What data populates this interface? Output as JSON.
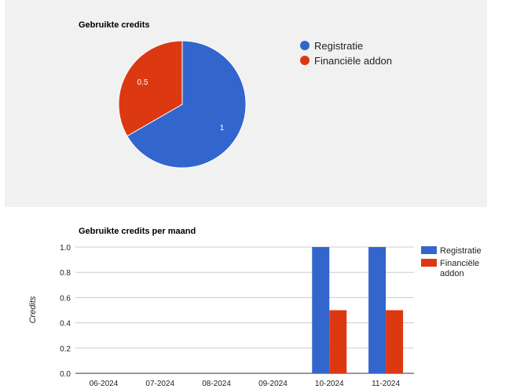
{
  "chart_data": [
    {
      "type": "pie",
      "title": "Gebruikte credits",
      "labels": [
        "Registratie",
        "Financiële addon"
      ],
      "values": [
        1,
        0.5
      ],
      "colors": [
        "#3366cc",
        "#dc3912"
      ],
      "legend": "right"
    },
    {
      "type": "bar",
      "title": "Gebruikte credits per maand",
      "categories": [
        "06-2024",
        "07-2024",
        "08-2024",
        "09-2024",
        "10-2024",
        "11-2024"
      ],
      "series": [
        {
          "name": "Registratie",
          "values": [
            0,
            0,
            0,
            0,
            1,
            1
          ],
          "color": "#3366cc"
        },
        {
          "name": "Financiële addon",
          "values": [
            0,
            0,
            0,
            0,
            0.5,
            0.5
          ],
          "color": "#dc3912"
        }
      ],
      "legend_lines": [
        [
          "Registratie"
        ],
        [
          "Financiële",
          "addon"
        ]
      ],
      "ylabel": "Credits",
      "ylim": [
        0,
        1
      ],
      "yticks": [
        "0.0",
        "0.2",
        "0.4",
        "0.6",
        "0.8",
        "1.0"
      ],
      "grid": true,
      "legend": "right"
    }
  ]
}
